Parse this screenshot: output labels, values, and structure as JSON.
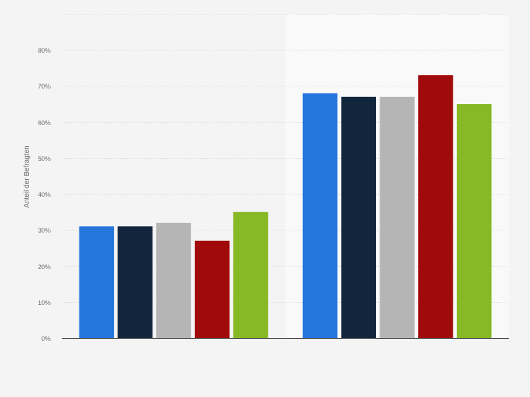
{
  "chart_data": {
    "type": "bar",
    "title": "",
    "xlabel": "",
    "ylabel": "Anteil der Befragten",
    "ylim": [
      0,
      90
    ],
    "y_ticks": [
      0,
      10,
      20,
      30,
      40,
      50,
      60,
      70,
      80
    ],
    "y_tick_labels": [
      "0%",
      "10%",
      "20%",
      "30%",
      "40%",
      "50%",
      "60%",
      "70%",
      "80%"
    ],
    "grid": true,
    "legend": "none",
    "categories": [
      "",
      ""
    ],
    "series": [
      {
        "color": "#2576dc",
        "values": [
          31,
          68
        ]
      },
      {
        "color": "#11263c",
        "values": [
          31,
          67
        ]
      },
      {
        "color": "#b5b5b5",
        "values": [
          32,
          67
        ]
      },
      {
        "color": "#a10a0a",
        "values": [
          27,
          73
        ]
      },
      {
        "color": "#87b825",
        "values": [
          35,
          65
        ]
      }
    ]
  }
}
